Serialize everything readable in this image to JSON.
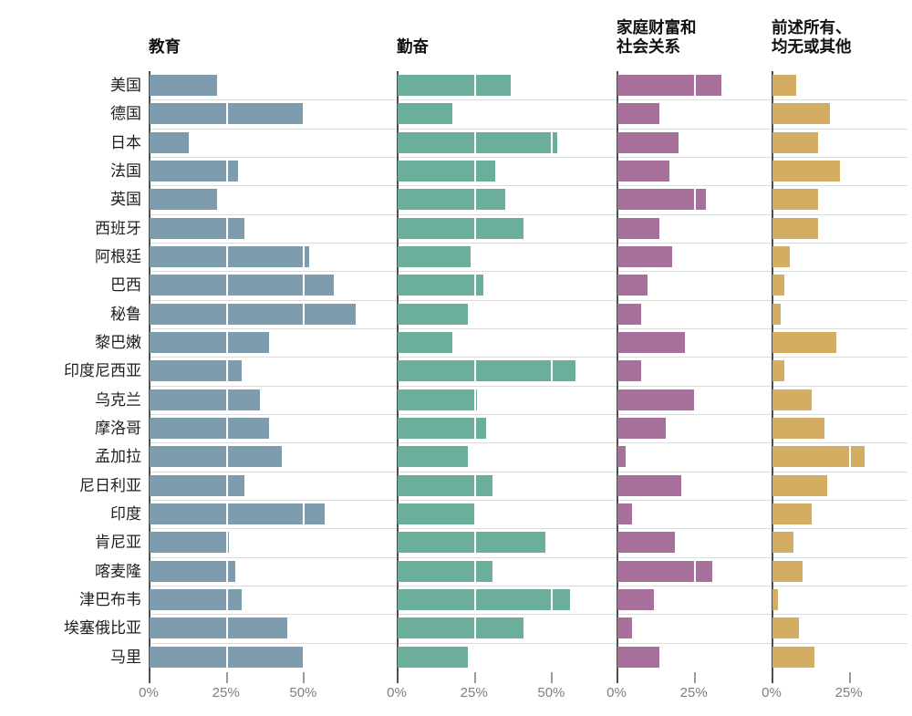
{
  "chart_data": {
    "type": "bar",
    "orientation": "horizontal",
    "unit": "%",
    "legend": "none",
    "grid": "white gaps cut bars at each 25% step; light horizontal separators between rows",
    "categories": [
      "美国",
      "德国",
      "日本",
      "法国",
      "英国",
      "西班牙",
      "阿根廷",
      "巴西",
      "秘鲁",
      "黎巴嫩",
      "印度尼西亚",
      "乌克兰",
      "摩洛哥",
      "孟加拉",
      "尼日利亚",
      "印度",
      "肯尼亚",
      "喀麦隆",
      "津巴布韦",
      "埃塞俄比亚",
      "马里"
    ],
    "panels": [
      {
        "title": "教育",
        "color": "#7d9cae",
        "xlim": [
          0,
          80
        ],
        "ticks": [
          0,
          25,
          50
        ],
        "tick_labels": [
          "0%",
          "25%",
          "50%"
        ]
      },
      {
        "title": "勤奋",
        "color": "#6cae9c",
        "xlim": [
          0,
          71
        ],
        "ticks": [
          0,
          25,
          50
        ],
        "tick_labels": [
          "0%",
          "25%",
          "50%"
        ]
      },
      {
        "title": "家庭财富和\n社会关系",
        "color": "#a7709a",
        "xlim": [
          0,
          50
        ],
        "ticks": [
          0,
          25
        ],
        "tick_labels": [
          "0%",
          "25%"
        ]
      },
      {
        "title": "前述所有、\n均无或其他",
        "color": "#d3ad62",
        "xlim": [
          0,
          44
        ],
        "ticks": [
          0,
          25
        ],
        "tick_labels": [
          "0%",
          "25%"
        ]
      }
    ],
    "series": [
      {
        "name": "教育",
        "values": [
          22,
          50,
          13,
          29,
          22,
          31,
          52,
          60,
          67,
          39,
          30,
          36,
          39,
          43,
          31,
          57,
          26,
          28,
          30,
          45,
          50
        ]
      },
      {
        "name": "勤奋",
        "values": [
          37,
          18,
          52,
          32,
          35,
          41,
          24,
          28,
          23,
          18,
          58,
          26,
          29,
          23,
          31,
          25,
          48,
          31,
          56,
          41,
          23
        ]
      },
      {
        "name": "家庭财富和社会关系",
        "values": [
          34,
          14,
          20,
          17,
          29,
          14,
          18,
          10,
          8,
          22,
          8,
          25,
          16,
          3,
          21,
          5,
          19,
          31,
          12,
          5,
          14
        ]
      },
      {
        "name": "前述所有、均无或其他",
        "values": [
          8,
          19,
          15,
          22,
          15,
          15,
          6,
          4,
          3,
          21,
          4,
          13,
          17,
          30,
          18,
          13,
          7,
          10,
          2,
          9,
          14
        ]
      }
    ]
  },
  "colors": {
    "education_bar": "#7d9cae",
    "hard_work_bar": "#6cae9c",
    "family_wealth_bar": "#a7709a",
    "other_bar": "#d3ad62",
    "axis_line": "#4d4d4d",
    "tick": "#9a9a9a",
    "tick_label": "#7f7f7f",
    "row_separator": "#dcdcdc",
    "text": "#1f1f1f",
    "background": "#ffffff"
  }
}
